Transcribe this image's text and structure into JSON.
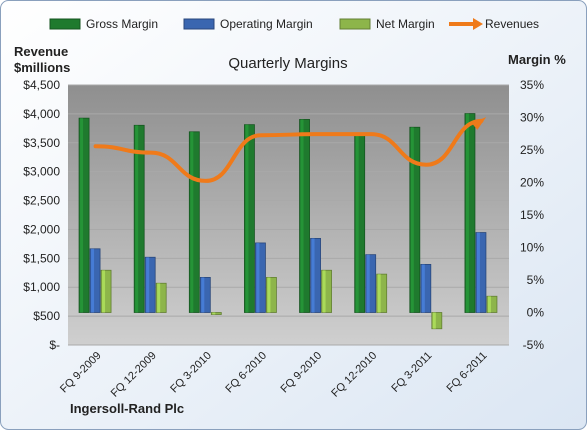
{
  "chart_data": {
    "type": "bar",
    "title": "Quarterly Margins",
    "company": "Ingersoll-Rand Plc",
    "y_left_label_line1": "Revenue",
    "y_left_label_line2": "$millions",
    "y_right_label": "Margin %",
    "categories": [
      "FQ 9-2009",
      "FQ 12-2009",
      "FQ 3-2010",
      "FQ 6-2010",
      "FQ 9-2010",
      "FQ 12-2010",
      "FQ 3-2011",
      "FQ 6-2011"
    ],
    "left_axis": {
      "min": 0,
      "max": 4500,
      "step": 500,
      "tick_labels": [
        "$-",
        "$500",
        "$1,000",
        "$1,500",
        "$2,000",
        "$2,500",
        "$3,000",
        "$3,500",
        "$4,000",
        "$4,500"
      ]
    },
    "right_axis": {
      "min": -5,
      "max": 35,
      "step": 5,
      "tick_labels": [
        "-5%",
        "0%",
        "5%",
        "10%",
        "15%",
        "20%",
        "25%",
        "30%",
        "35%"
      ]
    },
    "series": [
      {
        "name": "Gross Margin",
        "type": "bar",
        "axis": "right",
        "color": "#1f7a2e",
        "values": [
          29.9,
          28.8,
          27.8,
          28.9,
          29.7,
          27.5,
          28.5,
          30.6
        ]
      },
      {
        "name": "Operating Margin",
        "type": "bar",
        "axis": "right",
        "color": "#3a66b0",
        "values": [
          9.8,
          8.5,
          5.4,
          10.7,
          11.4,
          8.9,
          7.4,
          12.3
        ]
      },
      {
        "name": "Net Margin",
        "type": "bar",
        "axis": "right",
        "color": "#8db54a",
        "values": [
          6.5,
          4.5,
          -0.1,
          5.4,
          6.5,
          5.9,
          -2.5,
          2.5
        ]
      },
      {
        "name": "Revenues",
        "type": "line",
        "axis": "left",
        "color": "#ef7a1a",
        "values": [
          3440,
          3330,
          2840,
          3630,
          3650,
          3650,
          3120,
          3880
        ]
      }
    ],
    "grid": true,
    "legend_position": "top"
  }
}
